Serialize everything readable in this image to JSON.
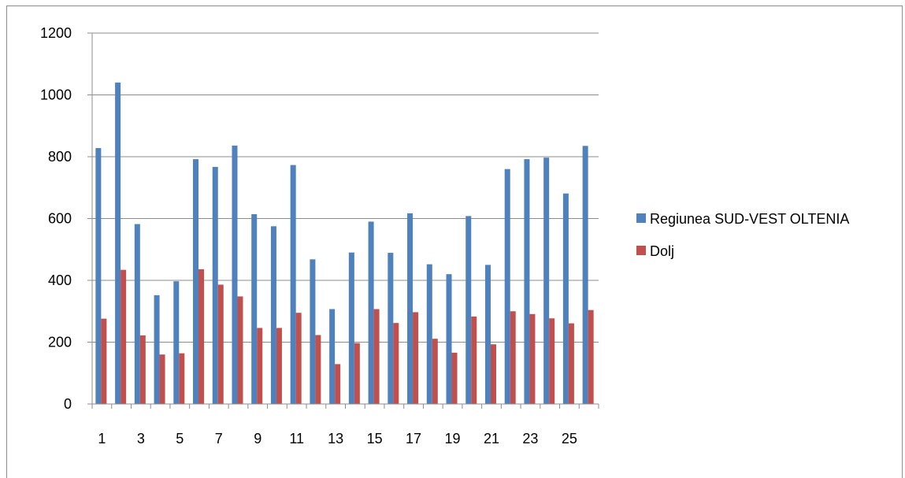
{
  "chart_data": {
    "type": "bar",
    "categories": [
      "1",
      "2",
      "3",
      "4",
      "5",
      "6",
      "7",
      "8",
      "9",
      "10",
      "11",
      "12",
      "13",
      "14",
      "15",
      "16",
      "17",
      "18",
      "19",
      "20",
      "21",
      "22",
      "23",
      "24",
      "25",
      "26"
    ],
    "x_tick_labels": [
      "1",
      "",
      "3",
      "",
      "5",
      "",
      "7",
      "",
      "9",
      "",
      "11",
      "",
      "13",
      "",
      "15",
      "",
      "17",
      "",
      "19",
      "",
      "21",
      "",
      "23",
      "",
      "25",
      ""
    ],
    "series": [
      {
        "name": "Regiunea SUD-VEST OLTENIA",
        "color": "#4f81bd",
        "values": [
          828,
          1040,
          582,
          352,
          397,
          792,
          767,
          836,
          614,
          575,
          773,
          468,
          307,
          490,
          590,
          489,
          617,
          452,
          420,
          608,
          450,
          760,
          792,
          797,
          681,
          835
        ]
      },
      {
        "name": "Dolj",
        "color": "#c0504d",
        "values": [
          276,
          434,
          222,
          160,
          164,
          436,
          386,
          348,
          246,
          246,
          295,
          223,
          129,
          197,
          307,
          262,
          297,
          211,
          166,
          283,
          193,
          300,
          291,
          277,
          261,
          304
        ]
      }
    ],
    "ylim": [
      0,
      1200
    ],
    "yticks": [
      0,
      200,
      400,
      600,
      800,
      1000,
      1200
    ],
    "grid": true,
    "legend_position": "right",
    "title": "",
    "xlabel": "",
    "ylabel": ""
  }
}
